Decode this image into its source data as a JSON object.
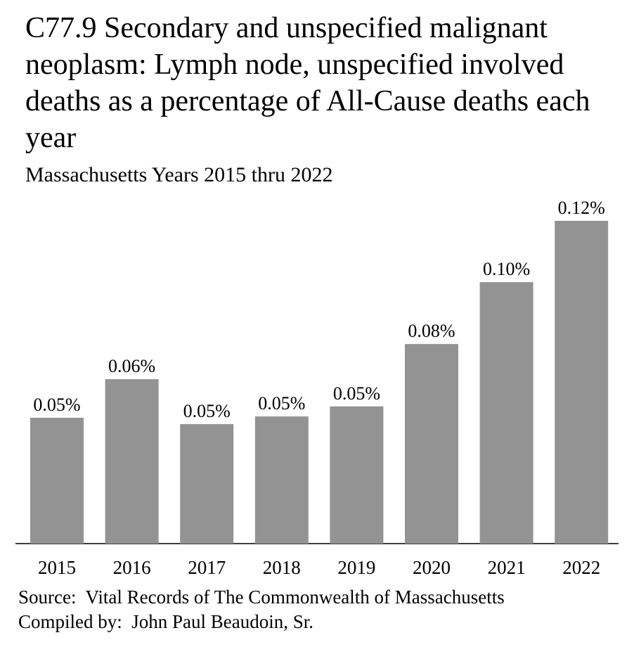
{
  "chart_data": {
    "type": "bar",
    "title": "C77.9 Secondary and unspecified malignant neoplasm: Lymph node, unspecified involved deaths as a percentage of All-Cause deaths each year",
    "subtitle": "Massachusetts Years 2015 thru 2022",
    "categories": [
      "2015",
      "2016",
      "2017",
      "2018",
      "2019",
      "2020",
      "2021",
      "2022"
    ],
    "values": [
      0.0476,
      0.0622,
      0.0452,
      0.0481,
      0.0519,
      0.0755,
      0.0989,
      0.1221
    ],
    "value_labels": [
      "0.05%",
      "0.06%",
      "0.05%",
      "0.05%",
      "0.05%",
      "0.08%",
      "0.10%",
      "0.12%"
    ],
    "color": "#939393",
    "source": "Source:  Vital Records of The Commonwealth of Massachusetts",
    "compiled_by": "Compiled by:  John Paul Beaudoin, Sr."
  }
}
